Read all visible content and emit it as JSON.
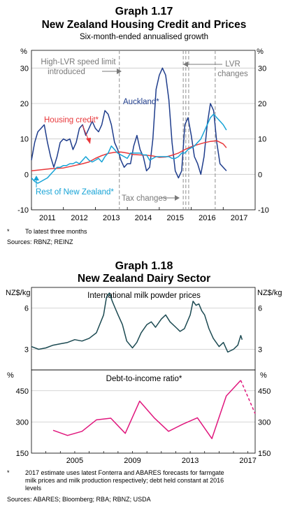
{
  "graph1": {
    "number": "Graph 1.17",
    "title": "New Zealand Housing Credit and Prices",
    "subtitle": "Six-month-ended annualised growth",
    "unit_left": "%",
    "unit_right": "%",
    "footnote_mark": "*",
    "footnote": "To latest three months",
    "sources": "Sources:   RBNZ; REINZ"
  },
  "graph2": {
    "number": "Graph 1.18",
    "title": "New Zealand Dairy Sector",
    "top_unit_left": "NZ$/kg",
    "top_unit_right": "NZ$/kg",
    "top_panel_title": "International milk powder prices",
    "bottom_unit_left": "%",
    "bottom_unit_right": "%",
    "bottom_panel_title": "Debt-to-income ratio*",
    "footnote_mark": "*",
    "footnote_lines": [
      "2017 estimate uses latest Fonterra and ABARES forecasts for farmgate",
      "milk prices and milk production respectively; debt held constant at 2016",
      "levels"
    ],
    "sources": "Sources:   ABARES; Bloomberg; RBA; RBNZ; USDA"
  },
  "chart_data": [
    {
      "type": "line",
      "title": "New Zealand Housing Credit and Prices",
      "subtitle": "Six-month-ended annualised growth",
      "ylabel": "%",
      "ylim": [
        -10,
        35
      ],
      "yticks": [
        -10,
        0,
        10,
        20,
        30
      ],
      "xlim": [
        2010.5,
        2017.5
      ],
      "xticks": [
        "2011",
        "2012",
        "2013",
        "2014",
        "2015",
        "2016",
        "2017"
      ],
      "grid": true,
      "colors": {
        "auckland": "#1f3d8c",
        "housing_credit": "#e8383b",
        "rest_of_nz": "#16a3d6",
        "events": "#999999"
      },
      "series": [
        {
          "name": "Auckland*",
          "x": [
            2010.5,
            2010.6,
            2010.7,
            2010.8,
            2010.9,
            2011.0,
            2011.1,
            2011.2,
            2011.3,
            2011.4,
            2011.5,
            2011.6,
            2011.7,
            2011.8,
            2011.9,
            2012.0,
            2012.1,
            2012.2,
            2012.3,
            2012.4,
            2012.5,
            2012.6,
            2012.7,
            2012.8,
            2012.9,
            2013.0,
            2013.1,
            2013.2,
            2013.3,
            2013.4,
            2013.5,
            2013.6,
            2013.7,
            2013.8,
            2013.9,
            2014.0,
            2014.1,
            2014.2,
            2014.3,
            2014.4,
            2014.5,
            2014.6,
            2014.7,
            2014.8,
            2014.9,
            2015.0,
            2015.1,
            2015.2,
            2015.3,
            2015.4,
            2015.5,
            2015.6,
            2015.7,
            2015.8,
            2015.9,
            2016.0,
            2016.1,
            2016.2,
            2016.3,
            2016.4,
            2016.5,
            2016.6
          ],
          "y": [
            4,
            9,
            12,
            13,
            14,
            9,
            5,
            2,
            5,
            9,
            10,
            9.5,
            10,
            7,
            9,
            13,
            14,
            11,
            13,
            15,
            13,
            12,
            14,
            18,
            17,
            14,
            9,
            7,
            4,
            2,
            3,
            3,
            8,
            11,
            7,
            5,
            1,
            2,
            10,
            24,
            28,
            30,
            28,
            21,
            9,
            1,
            -1,
            1,
            14,
            16,
            11,
            5,
            3,
            0,
            5,
            14,
            20,
            18,
            9,
            3,
            2,
            1
          ]
        },
        {
          "name": "Housing credit*",
          "x": [
            2010.5,
            2010.7,
            2010.9,
            2011.1,
            2011.3,
            2011.5,
            2011.7,
            2011.9,
            2012.1,
            2012.3,
            2012.5,
            2012.7,
            2012.9,
            2013.1,
            2013.3,
            2013.5,
            2013.7,
            2013.9,
            2014.1,
            2014.3,
            2014.5,
            2014.7,
            2014.9,
            2015.1,
            2015.3,
            2015.5,
            2015.7,
            2015.9,
            2016.1,
            2016.3,
            2016.5,
            2016.6
          ],
          "y": [
            1,
            1.2,
            1.4,
            1.6,
            1.7,
            1.8,
            2.2,
            2.6,
            3,
            3.5,
            4.5,
            5.3,
            5.9,
            6.2,
            6.3,
            6,
            5.6,
            5.5,
            5.4,
            5.2,
            4.8,
            4.9,
            5.4,
            6,
            7,
            7.8,
            8.4,
            8.9,
            9.3,
            9.5,
            8.6,
            7.5
          ]
        },
        {
          "name": "Rest of New Zealand*",
          "x": [
            2010.5,
            2010.6,
            2010.7,
            2010.8,
            2010.9,
            2011.0,
            2011.1,
            2011.2,
            2011.3,
            2011.4,
            2011.5,
            2011.6,
            2011.7,
            2011.8,
            2011.9,
            2012.0,
            2012.1,
            2012.2,
            2012.3,
            2012.4,
            2012.5,
            2012.6,
            2012.7,
            2012.8,
            2012.9,
            2013.0,
            2013.1,
            2013.2,
            2013.3,
            2013.4,
            2013.5,
            2013.6,
            2013.7,
            2013.8,
            2013.9,
            2014.0,
            2014.1,
            2014.2,
            2014.3,
            2014.4,
            2014.5,
            2014.6,
            2014.7,
            2014.8,
            2014.9,
            2015.0,
            2015.1,
            2015.2,
            2015.3,
            2015.4,
            2015.5,
            2015.6,
            2015.7,
            2015.8,
            2015.9,
            2016.0,
            2016.1,
            2016.2,
            2016.3,
            2016.4,
            2016.5,
            2016.6
          ],
          "y": [
            -1,
            -2,
            -2.5,
            -2,
            -1.5,
            -1,
            0,
            1,
            2,
            2,
            2.5,
            2.5,
            3,
            3,
            3.5,
            3,
            4,
            5,
            4,
            3.5,
            4,
            4.5,
            3.5,
            5,
            6,
            8,
            7,
            6,
            5.5,
            5,
            4.5,
            6,
            6,
            6,
            6,
            5.5,
            5.5,
            4,
            4.5,
            5,
            5,
            5,
            5,
            5,
            4.5,
            4.5,
            5,
            6,
            6,
            7,
            7.5,
            8,
            9,
            10,
            12,
            14,
            16,
            17,
            16,
            15,
            14,
            12.5
          ]
        }
      ],
      "events": [
        {
          "x": 2013.25,
          "label": "High-LVR speed limit introduced"
        },
        {
          "x": 2015.25,
          "label": "Tax changes"
        },
        {
          "x": 2015.33,
          "label": ""
        },
        {
          "x": 2015.42,
          "label": ""
        },
        {
          "x": 2016.25,
          "label": "LVR changes"
        }
      ],
      "labels": {
        "high_lvr_1": "High-LVR speed limit",
        "high_lvr_2": "introduced",
        "lvr_1": "LVR",
        "lvr_2": "changes",
        "tax": "Tax changes",
        "auckland": "Auckland*",
        "housing_credit": "Housing credit*",
        "rest_of_nz": "Rest of New Zealand*"
      }
    },
    {
      "type": "line",
      "title": "International milk powder prices",
      "ylabel": "NZ$/kg",
      "ylim": [
        1.5,
        7.5
      ],
      "yticks": [
        3,
        6
      ],
      "xlim": [
        2002,
        2017.5
      ],
      "grid": true,
      "color": "#1c4a52",
      "series": [
        {
          "name": "",
          "x": [
            2002.0,
            2002.5,
            2003.0,
            2003.5,
            2004.0,
            2004.5,
            2005.0,
            2005.5,
            2006.0,
            2006.5,
            2007.0,
            2007.2,
            2007.4,
            2007.6,
            2007.8,
            2008.0,
            2008.3,
            2008.6,
            2009.0,
            2009.3,
            2009.6,
            2010.0,
            2010.3,
            2010.6,
            2011.0,
            2011.3,
            2011.6,
            2012.0,
            2012.3,
            2012.6,
            2013.0,
            2013.2,
            2013.4,
            2013.6,
            2013.8,
            2014.0,
            2014.3,
            2014.6,
            2015.0,
            2015.3,
            2015.6,
            2016.0,
            2016.3,
            2016.5,
            2016.6
          ],
          "y": [
            3.2,
            3.0,
            3.1,
            3.3,
            3.4,
            3.5,
            3.7,
            3.6,
            3.8,
            4.2,
            5.5,
            6.8,
            7.1,
            6.5,
            6.0,
            5.5,
            4.8,
            3.6,
            3.1,
            3.5,
            4.2,
            4.8,
            5.0,
            4.6,
            5.2,
            5.5,
            5.0,
            4.6,
            4.3,
            4.5,
            5.5,
            6.5,
            6.2,
            6.3,
            5.8,
            5.5,
            4.5,
            3.8,
            3.2,
            3.5,
            2.8,
            3.0,
            3.3,
            4.0,
            3.7
          ]
        }
      ]
    },
    {
      "type": "line",
      "title": "Debt-to-income ratio*",
      "ylabel": "%",
      "ylim": [
        150,
        550
      ],
      "yticks": [
        150,
        300,
        450
      ],
      "xlim": [
        2002,
        2017.5
      ],
      "xticks": [
        "2005",
        "2009",
        "2013",
        "2017"
      ],
      "grid": true,
      "color": "#e0177d",
      "series": [
        {
          "name": "",
          "x": [
            2003.5,
            2004.5,
            2005.5,
            2006.5,
            2007.5,
            2008.5,
            2009.5,
            2010.5,
            2011.5,
            2012.5,
            2013.5,
            2014.5,
            2015.5,
            2016.5
          ],
          "y": [
            260,
            235,
            255,
            310,
            318,
            245,
            400,
            320,
            255,
            290,
            320,
            220,
            425,
            500
          ],
          "estimate": {
            "x": [
              2016.5,
              2017.5
            ],
            "y": [
              500,
              340
            ]
          }
        }
      ]
    }
  ]
}
